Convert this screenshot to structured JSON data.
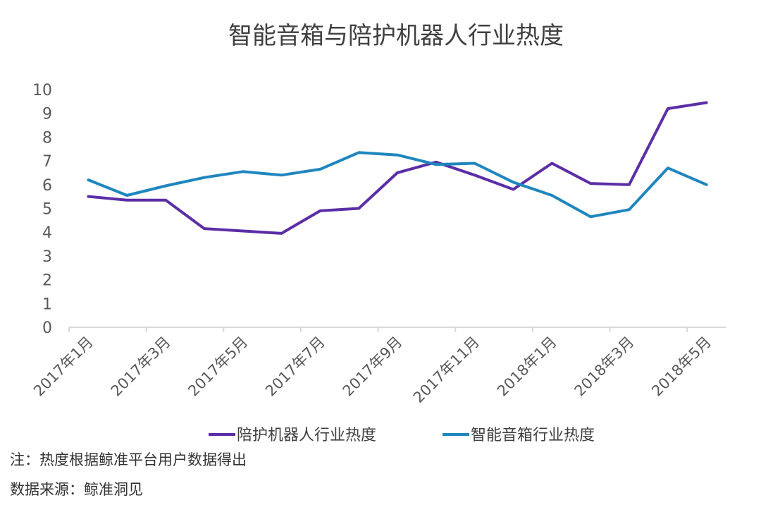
{
  "chart_data": {
    "type": "line",
    "title": "智能音箱与陪护机器人行业热度",
    "xlabel": "",
    "ylabel": "",
    "ylim": [
      0,
      10
    ],
    "yticks": [
      0,
      1,
      2,
      3,
      4,
      5,
      6,
      7,
      8,
      9,
      10
    ],
    "categories": [
      "2017年1月",
      "2017年2月",
      "2017年3月",
      "2017年4月",
      "2017年5月",
      "2017年6月",
      "2017年7月",
      "2017年8月",
      "2017年9月",
      "2017年10月",
      "2017年11月",
      "2017年12月",
      "2018年1月",
      "2018年2月",
      "2018年3月",
      "2018年4月",
      "2018年5月"
    ],
    "xtick_labels": [
      "2017年1月",
      "2017年3月",
      "2017年5月",
      "2017年7月",
      "2017年9月",
      "2017年11月",
      "2018年1月",
      "2018年3月",
      "2018年5月"
    ],
    "series": [
      {
        "name": "陪护机器人行业热度",
        "color": "#5b2ea6",
        "values": [
          5.5,
          5.35,
          5.35,
          4.15,
          4.05,
          3.95,
          4.9,
          5.0,
          6.5,
          6.95,
          6.4,
          5.8,
          6.9,
          6.05,
          6.0,
          9.2,
          9.45
        ]
      },
      {
        "name": "智能音箱行业热度",
        "color": "#1f86be",
        "values": [
          6.2,
          5.55,
          5.95,
          6.3,
          6.55,
          6.4,
          6.65,
          7.35,
          7.25,
          6.85,
          6.9,
          6.1,
          5.55,
          4.65,
          4.95,
          6.7,
          6.0
        ]
      }
    ],
    "grid": false,
    "legend": "bottom"
  },
  "notes": {
    "note": "注：热度根据鲸准平台用户数据得出",
    "source": "数据来源：鲸准洞见"
  }
}
